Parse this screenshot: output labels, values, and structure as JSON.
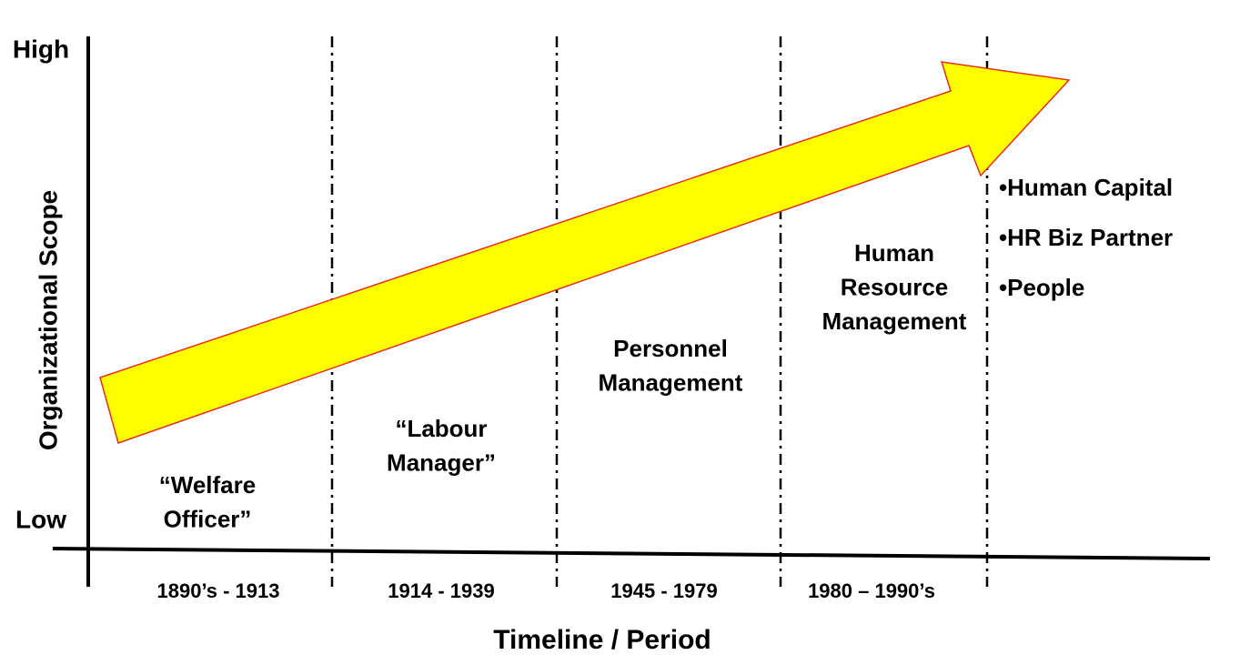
{
  "y_axis": {
    "title": "Organizational Scope",
    "high": "High",
    "low": "Low"
  },
  "x_axis": {
    "title": "Timeline / Period"
  },
  "periods": [
    {
      "label_lines": [
        "“Welfare",
        "Officer”"
      ],
      "dates": "1890’s - 1913"
    },
    {
      "label_lines": [
        "“Labour",
        "Manager”"
      ],
      "dates": "1914 - 1939"
    },
    {
      "label_lines": [
        "Personnel",
        "Management"
      ],
      "dates": "1945 - 1979"
    },
    {
      "label_lines": [
        "Human",
        "Resource",
        "Management"
      ],
      "dates": "1980 – 1990’s"
    }
  ],
  "future": [
    "•Human Capital",
    "•HR Biz Partner",
    "•People"
  ]
}
